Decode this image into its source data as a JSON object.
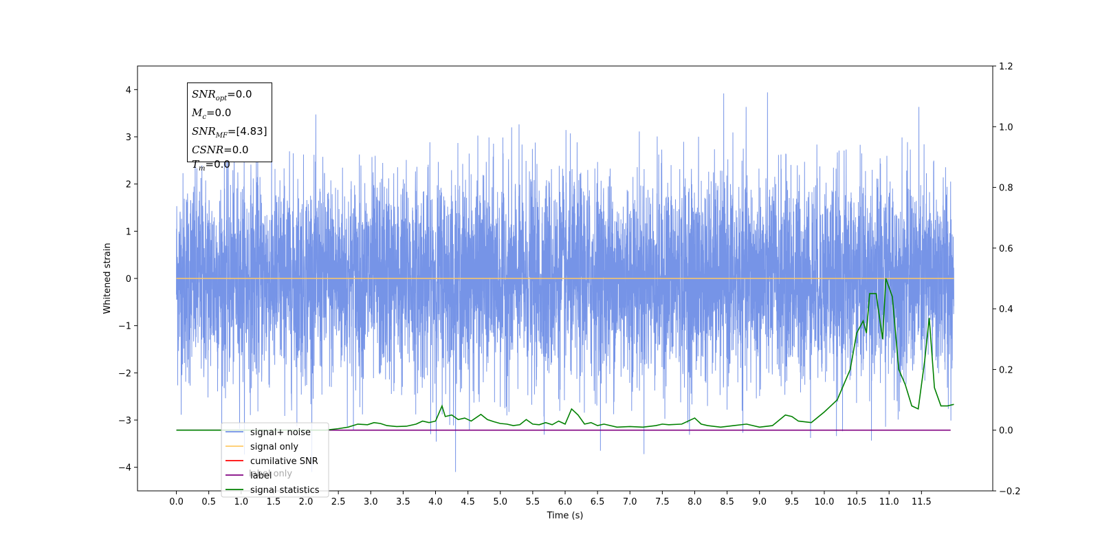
{
  "chart_data": {
    "type": "line",
    "xlabel": "Time (s)",
    "ylabel_left": "Whitened strain",
    "ylabel_right": "",
    "xlim": [
      -0.6,
      12.6
    ],
    "ylim_left": [
      -4.5,
      4.5
    ],
    "ylim_right": [
      -0.2,
      1.2
    ],
    "x_ticks": [
      "0.0",
      "0.5",
      "1.0",
      "1.5",
      "2.0",
      "2.5",
      "3.0",
      "3.5",
      "4.0",
      "4.5",
      "5.0",
      "5.5",
      "6.0",
      "6.5",
      "7.0",
      "7.5",
      "8.0",
      "8.5",
      "9.0",
      "9.5",
      "10.0",
      "10.5",
      "11.0",
      "11.5"
    ],
    "y_ticks_left": [
      "4",
      "3",
      "2",
      "1",
      "0",
      "−1",
      "−2",
      "−3",
      "−4"
    ],
    "y_ticks_right": [
      "1.2",
      "1.0",
      "0.8",
      "0.6",
      "0.4",
      "0.2",
      "0.0",
      "−0.2"
    ],
    "grid": false,
    "legend_position": "lower-left",
    "legend": [
      {
        "label": "signal+ noise",
        "color": "#6f8ee6"
      },
      {
        "label": "signal only",
        "color": "#ffc966"
      },
      {
        "label": "cumilative SNR",
        "color": "#ff0000"
      },
      {
        "label": "label",
        "color": "#800080"
      },
      {
        "label": "signal statistics",
        "color": "#008000"
      }
    ],
    "legend_hidden_text": "label only",
    "series": [
      {
        "name": "signal+ noise",
        "axis": "left",
        "color": "#6f8ee6",
        "x_range": [
          0.0,
          12.0
        ],
        "distribution": "gaussian noise",
        "envelope_max": 4.05,
        "envelope_min": -4.1
      },
      {
        "name": "signal only",
        "axis": "left",
        "color": "#ffc966",
        "x": [
          0.0,
          12.0
        ],
        "y": [
          0.0,
          0.0
        ]
      },
      {
        "name": "label",
        "axis": "right",
        "color": "#800080",
        "x": [
          0.0,
          11.95
        ],
        "y": [
          0.0,
          0.0
        ]
      },
      {
        "name": "signal statistics",
        "axis": "right",
        "color": "#008000",
        "x": [
          0.0,
          2.3,
          2.5,
          2.65,
          2.8,
          2.95,
          3.05,
          3.15,
          3.25,
          3.4,
          3.55,
          3.7,
          3.8,
          3.9,
          4.0,
          4.1,
          4.15,
          4.25,
          4.35,
          4.45,
          4.55,
          4.7,
          4.8,
          4.9,
          5.0,
          5.1,
          5.2,
          5.3,
          5.4,
          5.5,
          5.6,
          5.7,
          5.8,
          5.9,
          6.0,
          6.1,
          6.2,
          6.3,
          6.4,
          6.5,
          6.6,
          6.8,
          7.0,
          7.2,
          7.4,
          7.5,
          7.6,
          7.8,
          8.0,
          8.1,
          8.2,
          8.4,
          8.6,
          8.8,
          9.0,
          9.2,
          9.4,
          9.5,
          9.6,
          9.8,
          10.0,
          10.1,
          10.2,
          10.3,
          10.4,
          10.5,
          10.6,
          10.65,
          10.7,
          10.8,
          10.9,
          10.95,
          11.05,
          11.15,
          11.25,
          11.35,
          11.45,
          11.55,
          11.62,
          11.7,
          11.8,
          11.9,
          12.0
        ],
        "y": [
          0.0,
          0.0,
          0.005,
          0.01,
          0.02,
          0.018,
          0.025,
          0.022,
          0.015,
          0.012,
          0.013,
          0.02,
          0.03,
          0.025,
          0.03,
          0.08,
          0.045,
          0.05,
          0.035,
          0.04,
          0.03,
          0.052,
          0.035,
          0.028,
          0.022,
          0.02,
          0.015,
          0.018,
          0.035,
          0.02,
          0.018,
          0.025,
          0.018,
          0.03,
          0.02,
          0.07,
          0.05,
          0.02,
          0.025,
          0.015,
          0.02,
          0.01,
          0.012,
          0.01,
          0.015,
          0.02,
          0.018,
          0.02,
          0.04,
          0.02,
          0.015,
          0.01,
          0.015,
          0.02,
          0.01,
          0.015,
          0.05,
          0.045,
          0.03,
          0.025,
          0.06,
          0.08,
          0.1,
          0.15,
          0.2,
          0.32,
          0.36,
          0.32,
          0.45,
          0.45,
          0.3,
          0.5,
          0.44,
          0.2,
          0.15,
          0.08,
          0.07,
          0.23,
          0.37,
          0.14,
          0.08,
          0.08,
          0.085
        ]
      }
    ]
  },
  "info_box": {
    "snr_opt": "=0.0",
    "mc": "=0.0",
    "snr_mf": "=[4.83]",
    "csnr": "=0.0",
    "tm": "=0.0",
    "snr_opt_label": "SNR",
    "snr_opt_sub": "opt",
    "mc_label": "M",
    "mc_sub": "c",
    "snr_mf_label": "SNR",
    "snr_mf_sub": "MF",
    "csnr_label": "CSNR",
    "tm_label": "T",
    "tm_sub": "m"
  }
}
